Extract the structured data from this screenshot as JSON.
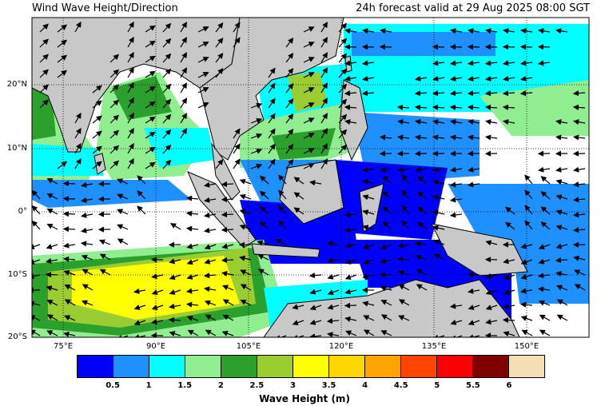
{
  "header": {
    "title": "Wind Wave Height/Direction",
    "valid": "24h forecast valid at 29 Aug 2025 08:00 SGT"
  },
  "map": {
    "lon_range": [
      70,
      160
    ],
    "lat_range": [
      -20,
      30
    ],
    "lat_ticks": [
      {
        "value": 20,
        "label": "20°N"
      },
      {
        "value": 10,
        "label": "10°N"
      },
      {
        "value": 0,
        "label": "0°"
      },
      {
        "value": -10,
        "label": "10°S"
      },
      {
        "value": -20,
        "label": "20°S"
      }
    ],
    "lon_ticks": [
      {
        "value": 75,
        "label": "75°E"
      },
      {
        "value": 90,
        "label": "90°E"
      },
      {
        "value": 105,
        "label": "105°E"
      },
      {
        "value": 120,
        "label": "120°E"
      },
      {
        "value": 135,
        "label": "135°E"
      },
      {
        "value": 150,
        "label": "150°E"
      }
    ],
    "gridlines": true,
    "land_color": "#c8c8c8",
    "ocean_color": "#ffffff"
  },
  "colorbar": {
    "label": "Wave Height (m)",
    "colors": [
      "#0000ff",
      "#1e90ff",
      "#00ffff",
      "#90ee90",
      "#2ca02c",
      "#9acd32",
      "#ffff00",
      "#ffd700",
      "#ffa500",
      "#ff4500",
      "#ff0000",
      "#800000",
      "#f5deb3"
    ],
    "ticks": [
      "0.5",
      "1",
      "1.5",
      "2",
      "2.5",
      "3",
      "3.5",
      "4",
      "4.5",
      "5",
      "5.5",
      "6"
    ]
  }
}
